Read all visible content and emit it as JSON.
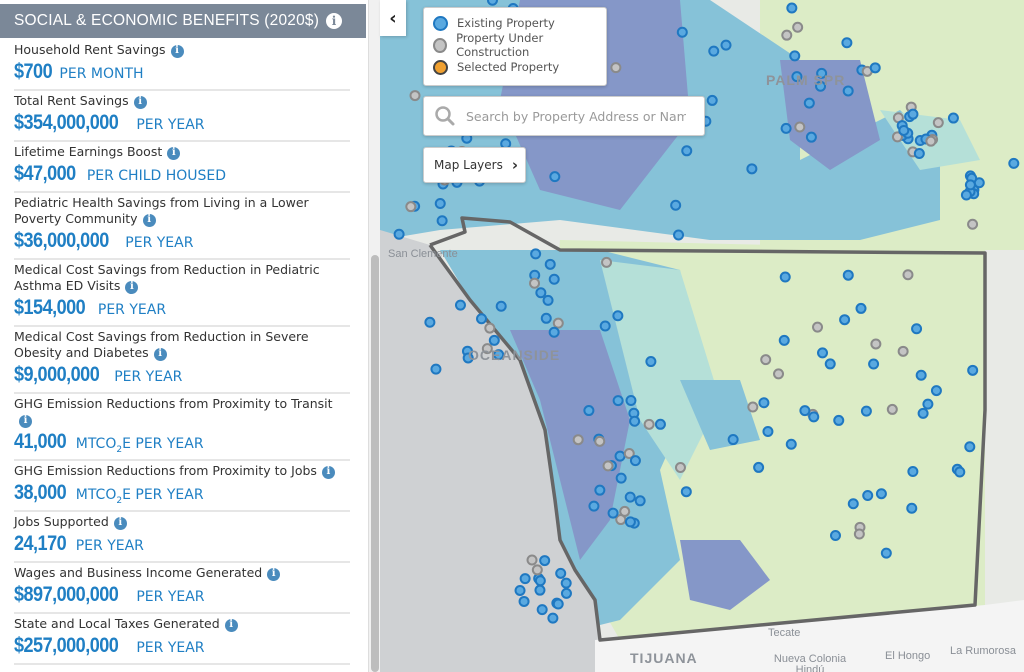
{
  "panel": {
    "title": "SOCIAL & ECONOMIC BENEFITS (2020$)",
    "items": [
      {
        "label": "Household Rent Savings",
        "value": "$700",
        "unit": "PER MONTH"
      },
      {
        "label": "Total Rent Savings",
        "value": "$354,000,000",
        "unit": "PER YEAR"
      },
      {
        "label": "Lifetime Earnings Boost",
        "value": "$47,000",
        "unit": "PER CHILD HOUSED"
      },
      {
        "label": "Pediatric Health Savings from Living in a Lower Poverty Community",
        "value": "$36,000,000",
        "unit": "PER YEAR"
      },
      {
        "label": "Medical Cost Savings from Reduction in Pediatric Asthma ED Visits",
        "value": "$154,000",
        "unit": "PER YEAR"
      },
      {
        "label": "Medical Cost Savings from Reduction in Severe Obesity and Diabetes",
        "value": "$9,000,000",
        "unit": "PER YEAR"
      },
      {
        "label": "GHG Emission Reductions from Proximity to Transit",
        "value": "41,000",
        "unit_pre": "MTCO",
        "unit_sub": "2",
        "unit": "E PER YEAR"
      },
      {
        "label": "GHG Emission Reductions from Proximity to Jobs",
        "value": "38,000",
        "unit_pre": "MTCO",
        "unit_sub": "2",
        "unit": "E PER YEAR"
      },
      {
        "label": "Jobs Supported",
        "value": "24,170",
        "unit": "PER YEAR"
      },
      {
        "label": "Wages and Business Income Generated",
        "value": "$897,000,000",
        "unit": "PER YEAR"
      },
      {
        "label": "State and Local Taxes Generated",
        "value": "$257,000,000",
        "unit": "PER YEAR"
      }
    ]
  },
  "map": {
    "collapse_icon": "chevron-left",
    "legend": [
      {
        "label": "Existing Property",
        "fill": "#5aa9e0",
        "stroke": "#1f78c1"
      },
      {
        "label": "Property Under Construction",
        "fill": "#c4c4c4",
        "stroke": "#8a8a8a"
      },
      {
        "label": "Selected Property",
        "fill": "#f0a030",
        "stroke": "#444444"
      }
    ],
    "search_placeholder": "Search by Property Address or Name",
    "layers_label": "Map Layers",
    "place_labels": {
      "palm_springs": "PALM SPR",
      "san_clemente": "San Clemente",
      "oceanside": "OCEANSIDE",
      "tijuana": "TIJUANA",
      "tecate": "Tecate",
      "nueva_colonia": "Nueva Colonia Hindú",
      "el_hongo": "El Hongo",
      "la_rumorosa": "La Rumorosa"
    },
    "colors": {
      "accent": "#1f7fc4",
      "header": "#7b8898",
      "ocean": "#cfd1d3",
      "tract_dark": "#8597c8",
      "tract_mid": "#86c2d8",
      "tract_light": "#b5e0d8",
      "land_green": "#dcecc6",
      "county_outline": "#666666"
    }
  }
}
